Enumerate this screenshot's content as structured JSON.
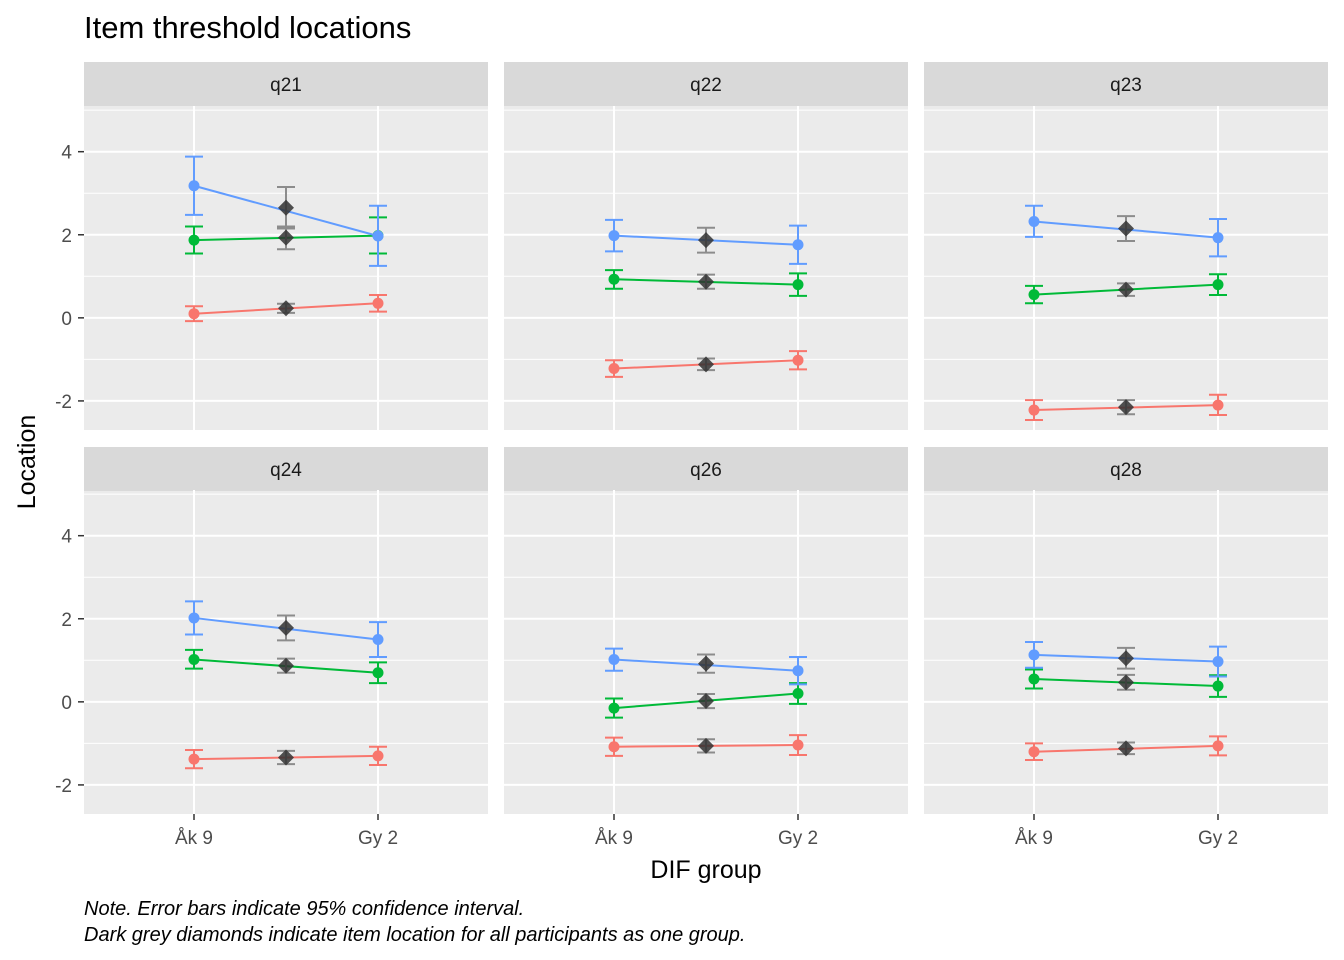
{
  "chart_data": {
    "type": "line",
    "title": "Item threshold locations",
    "xlabel": "DIF group",
    "ylabel": "Location",
    "categories": [
      "Åk 9",
      "Gy 2"
    ],
    "y_ticks": [
      "-2",
      "0",
      "2",
      "4"
    ],
    "ylim": [
      -2.7,
      5.1
    ],
    "grid": true,
    "legend": "none",
    "colors": {
      "threshold_1": "#F8766D",
      "threshold_2": "#00BA38",
      "threshold_3": "#619CFF",
      "overall": "#333333",
      "overall_ci": "#8C8C8C"
    },
    "panels": [
      {
        "label": "q21",
        "thresholds": [
          {
            "values": [
              0.1,
              0.35
            ],
            "ci": [
              [
                -0.08,
                0.28
              ],
              [
                0.15,
                0.55
              ]
            ],
            "overall": 0.23,
            "overall_ci": [
              0.12,
              0.34
            ]
          },
          {
            "values": [
              1.87,
              1.98
            ],
            "ci": [
              [
                1.55,
                2.2
              ],
              [
                1.55,
                2.42
              ]
            ],
            "overall": 1.93,
            "overall_ci": [
              1.65,
              2.2
            ]
          },
          {
            "values": [
              3.18,
              1.97
            ],
            "ci": [
              [
                2.48,
                3.88
              ],
              [
                1.25,
                2.7
              ]
            ],
            "overall": 2.65,
            "overall_ci": [
              2.15,
              3.15
            ]
          }
        ]
      },
      {
        "label": "q22",
        "thresholds": [
          {
            "values": [
              -1.22,
              -1.02
            ],
            "ci": [
              [
                -1.42,
                -1.02
              ],
              [
                -1.24,
                -0.8
              ]
            ],
            "overall": -1.12,
            "overall_ci": [
              -1.26,
              -0.98
            ]
          },
          {
            "values": [
              0.93,
              0.8
            ],
            "ci": [
              [
                0.7,
                1.15
              ],
              [
                0.53,
                1.07
              ]
            ],
            "overall": 0.87,
            "overall_ci": [
              0.7,
              1.04
            ]
          },
          {
            "values": [
              1.98,
              1.76
            ],
            "ci": [
              [
                1.6,
                2.36
              ],
              [
                1.3,
                2.22
              ]
            ],
            "overall": 1.87,
            "overall_ci": [
              1.57,
              2.17
            ]
          }
        ]
      },
      {
        "label": "q23",
        "thresholds": [
          {
            "values": [
              -2.22,
              -2.1
            ],
            "ci": [
              [
                -2.46,
                -1.98
              ],
              [
                -2.34,
                -1.85
              ]
            ],
            "overall": -2.15,
            "overall_ci": [
              -2.32,
              -1.98
            ]
          },
          {
            "values": [
              0.56,
              0.8
            ],
            "ci": [
              [
                0.35,
                0.77
              ],
              [
                0.55,
                1.05
              ]
            ],
            "overall": 0.68,
            "overall_ci": [
              0.53,
              0.83
            ]
          },
          {
            "values": [
              2.32,
              1.93
            ],
            "ci": [
              [
                1.95,
                2.7
              ],
              [
                1.48,
                2.38
              ]
            ],
            "overall": 2.15,
            "overall_ci": [
              1.85,
              2.45
            ]
          }
        ]
      },
      {
        "label": "q24",
        "thresholds": [
          {
            "values": [
              -1.38,
              -1.3
            ],
            "ci": [
              [
                -1.6,
                -1.16
              ],
              [
                -1.52,
                -1.08
              ]
            ],
            "overall": -1.34,
            "overall_ci": [
              -1.5,
              -1.18
            ]
          },
          {
            "values": [
              1.02,
              0.7
            ],
            "ci": [
              [
                0.8,
                1.25
              ],
              [
                0.45,
                0.95
              ]
            ],
            "overall": 0.87,
            "overall_ci": [
              0.7,
              1.04
            ]
          },
          {
            "values": [
              2.02,
              1.5
            ],
            "ci": [
              [
                1.62,
                2.42
              ],
              [
                1.08,
                1.92
              ]
            ],
            "overall": 1.78,
            "overall_ci": [
              1.48,
              2.08
            ]
          }
        ]
      },
      {
        "label": "q26",
        "thresholds": [
          {
            "values": [
              -1.08,
              -1.04
            ],
            "ci": [
              [
                -1.3,
                -0.86
              ],
              [
                -1.28,
                -0.8
              ]
            ],
            "overall": -1.06,
            "overall_ci": [
              -1.22,
              -0.9
            ]
          },
          {
            "values": [
              -0.15,
              0.2
            ],
            "ci": [
              [
                -0.38,
                0.08
              ],
              [
                -0.05,
                0.45
              ]
            ],
            "overall": 0.02,
            "overall_ci": [
              -0.15,
              0.19
            ]
          },
          {
            "values": [
              1.02,
              0.75
            ],
            "ci": [
              [
                0.75,
                1.28
              ],
              [
                0.42,
                1.08
              ]
            ],
            "overall": 0.92,
            "overall_ci": [
              0.7,
              1.14
            ]
          }
        ]
      },
      {
        "label": "q28",
        "thresholds": [
          {
            "values": [
              -1.2,
              -1.06
            ],
            "ci": [
              [
                -1.4,
                -1.0
              ],
              [
                -1.29,
                -0.83
              ]
            ],
            "overall": -1.12,
            "overall_ci": [
              -1.26,
              -0.98
            ]
          },
          {
            "values": [
              0.55,
              0.38
            ],
            "ci": [
              [
                0.32,
                0.78
              ],
              [
                0.12,
                0.64
              ]
            ],
            "overall": 0.47,
            "overall_ci": [
              0.29,
              0.65
            ]
          },
          {
            "values": [
              1.13,
              0.97
            ],
            "ci": [
              [
                0.82,
                1.44
              ],
              [
                0.61,
                1.33
              ]
            ],
            "overall": 1.05,
            "overall_ci": [
              0.8,
              1.3
            ]
          }
        ]
      }
    ]
  },
  "notes": [
    "Note. Error bars indicate 95% confidence interval.",
    "Dark grey diamonds indicate item location for all participants as one group."
  ]
}
